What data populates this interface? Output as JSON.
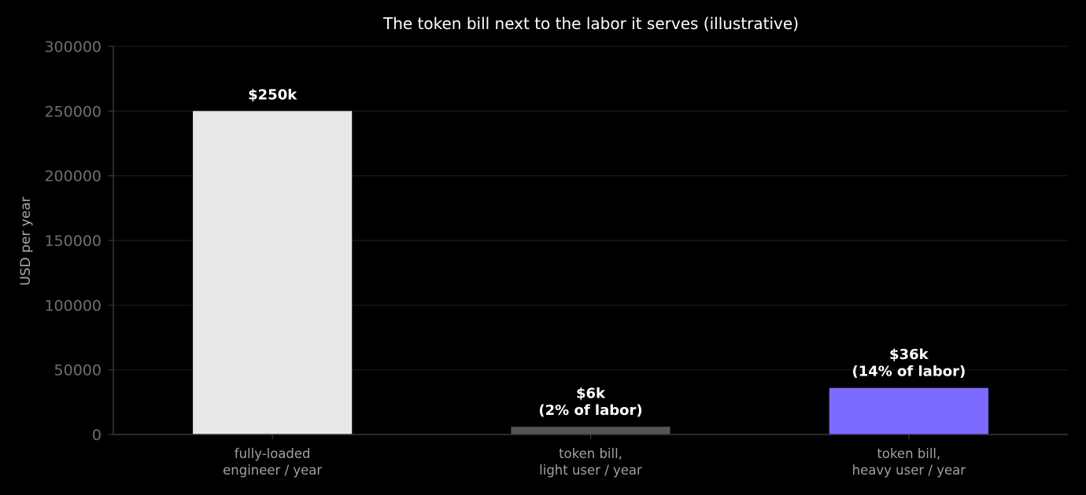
{
  "chart_data": {
    "type": "bar",
    "title": "The token bill next to the labor it serves (illustrative)",
    "xlabel": "",
    "ylabel": "USD per year",
    "ylim": [
      0,
      300000
    ],
    "yticks": [
      0,
      50000,
      100000,
      150000,
      200000,
      250000,
      300000
    ],
    "grid": true,
    "categories": [
      [
        "fully-loaded",
        "engineer / year"
      ],
      [
        "token bill,",
        "light user / year"
      ],
      [
        "token bill,",
        "heavy user / year"
      ]
    ],
    "values": [
      250000,
      6000,
      36000
    ],
    "data_labels": [
      [
        "$250k"
      ],
      [
        "$6k",
        "(2% of labor)"
      ],
      [
        "$36k",
        "(14% of labor)"
      ]
    ],
    "colors": [
      "#e8e8e8",
      "#555555",
      "#7b6bff"
    ]
  }
}
